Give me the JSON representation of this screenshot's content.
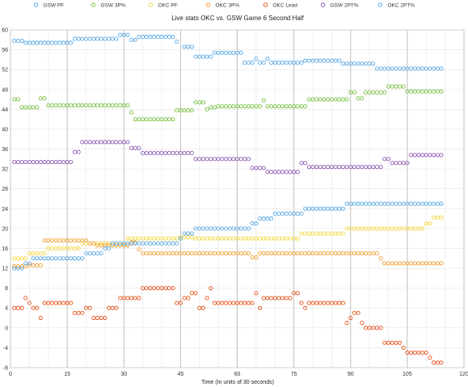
{
  "chart_data": {
    "type": "scatter",
    "title": "Live stats OKC vs. GSW Game 6 Second Half",
    "xlabel": "Time (In units of 30 seconds)",
    "ylabel": "",
    "xlim": [
      0,
      120
    ],
    "ylim": [
      -8,
      60
    ],
    "xticks": [
      0,
      15,
      30,
      45,
      60,
      75,
      90,
      105,
      120
    ],
    "yticks": [
      -8,
      -4,
      0,
      4,
      8,
      12,
      16,
      20,
      24,
      28,
      32,
      36,
      40,
      44,
      48,
      52,
      56,
      60
    ],
    "grid": "on",
    "legend_position": "top",
    "series": [
      {
        "name": "GSW PF",
        "color": "#5aa9e6",
        "segments": [
          [
            1,
            3,
            57.8
          ],
          [
            4,
            16,
            57.4
          ],
          [
            17,
            28,
            58.2
          ],
          [
            29,
            31,
            59.0
          ],
          [
            32,
            33,
            58.0
          ],
          [
            34,
            43,
            58.6
          ],
          [
            44,
            44,
            57.6
          ],
          [
            46,
            48,
            56.6
          ],
          [
            49,
            51,
            54.6
          ],
          [
            52,
            53,
            54.6
          ],
          [
            54,
            61,
            55.4
          ],
          [
            62,
            64,
            53.4
          ],
          [
            65,
            65,
            54.2
          ],
          [
            66,
            67,
            53.4
          ],
          [
            68,
            68,
            54.2
          ],
          [
            69,
            77,
            53.4
          ],
          [
            78,
            87,
            53.8
          ],
          [
            88,
            96,
            53.2
          ],
          [
            97,
            103,
            52.2
          ],
          [
            104,
            114,
            52.2
          ]
        ]
      },
      {
        "name": "GSW 3P%",
        "color": "#7ac143",
        "segments": [
          [
            1,
            2,
            46.0
          ],
          [
            3,
            7,
            44.4
          ],
          [
            8,
            9,
            46.2
          ],
          [
            10,
            31,
            44.8
          ],
          [
            32,
            32,
            43.4
          ],
          [
            33,
            43,
            42.0
          ],
          [
            44,
            48,
            43.8
          ],
          [
            49,
            51,
            45.4
          ],
          [
            52,
            52,
            44.0
          ],
          [
            53,
            54,
            44.4
          ],
          [
            55,
            66,
            44.6
          ],
          [
            67,
            67,
            45.8
          ],
          [
            68,
            78,
            44.6
          ],
          [
            79,
            89,
            46.0
          ],
          [
            90,
            91,
            47.4
          ],
          [
            92,
            93,
            46.2
          ],
          [
            94,
            99,
            47.4
          ],
          [
            100,
            104,
            48.6
          ],
          [
            105,
            114,
            47.6
          ]
        ]
      },
      {
        "name": "OKC PF",
        "color": "#f5d742",
        "segments": [
          [
            1,
            4,
            14.0
          ],
          [
            5,
            9,
            15.0
          ],
          [
            10,
            18,
            16.0
          ],
          [
            19,
            19,
            17.0
          ],
          [
            20,
            23,
            17.0
          ],
          [
            24,
            30,
            17.0
          ],
          [
            31,
            44,
            18.0
          ],
          [
            45,
            48,
            18.2
          ],
          [
            49,
            76,
            18.0
          ],
          [
            77,
            88,
            19.0
          ],
          [
            89,
            109,
            20.0
          ],
          [
            110,
            111,
            21.0
          ],
          [
            112,
            114,
            22.2
          ]
        ]
      },
      {
        "name": "OKC 3P%",
        "color": "#f0a030",
        "segments": [
          [
            1,
            4,
            12.4
          ],
          [
            5,
            8,
            12.6
          ],
          [
            9,
            20,
            17.6
          ],
          [
            21,
            22,
            17.0
          ],
          [
            23,
            31,
            16.6
          ],
          [
            32,
            33,
            17.2
          ],
          [
            34,
            34,
            15.8
          ],
          [
            35,
            63,
            15.0
          ],
          [
            64,
            65,
            14.2
          ],
          [
            66,
            97,
            15.0
          ],
          [
            98,
            98,
            14.0
          ],
          [
            99,
            114,
            13.0
          ]
        ]
      },
      {
        "name": "OKC Lead",
        "color": "#e8521c",
        "segments": [
          [
            1,
            3,
            4.0
          ],
          [
            4,
            4,
            6.0
          ],
          [
            5,
            5,
            5.0
          ],
          [
            6,
            7,
            4.0
          ],
          [
            8,
            8,
            2.0
          ],
          [
            9,
            16,
            5.0
          ],
          [
            17,
            19,
            3.0
          ],
          [
            20,
            21,
            4.0
          ],
          [
            22,
            25,
            2.0
          ],
          [
            26,
            28,
            4.0
          ],
          [
            29,
            34,
            6.0
          ],
          [
            35,
            43,
            8.0
          ],
          [
            44,
            45,
            5.0
          ],
          [
            46,
            47,
            6.0
          ],
          [
            48,
            49,
            7.0
          ],
          [
            50,
            51,
            4.0
          ],
          [
            52,
            52,
            6.0
          ],
          [
            53,
            53,
            8.0
          ],
          [
            54,
            64,
            5.0
          ],
          [
            65,
            65,
            7.0
          ],
          [
            66,
            66,
            4.0
          ],
          [
            67,
            67,
            6.0
          ],
          [
            68,
            74,
            6.0
          ],
          [
            75,
            76,
            7.0
          ],
          [
            77,
            77,
            5.0
          ],
          [
            78,
            78,
            4.0
          ],
          [
            79,
            88,
            5.0
          ],
          [
            89,
            89,
            1.0
          ],
          [
            90,
            90,
            2.0
          ],
          [
            91,
            92,
            3.0
          ],
          [
            93,
            93,
            1.0
          ],
          [
            94,
            98,
            0.0
          ],
          [
            99,
            103,
            -3.0
          ],
          [
            104,
            104,
            -4.0
          ],
          [
            105,
            110,
            -5.0
          ],
          [
            111,
            111,
            -6.0
          ],
          [
            112,
            114,
            -7.0
          ]
        ]
      },
      {
        "name": "GSW 2PT%",
        "color": "#8e5bb5",
        "segments": [
          [
            1,
            16,
            33.4
          ],
          [
            17,
            18,
            35.4
          ],
          [
            19,
            31,
            37.4
          ],
          [
            32,
            34,
            36.2
          ],
          [
            35,
            48,
            35.2
          ],
          [
            49,
            63,
            34.0
          ],
          [
            64,
            67,
            32.2
          ],
          [
            68,
            76,
            31.4
          ],
          [
            77,
            78,
            33.2
          ],
          [
            79,
            98,
            32.4
          ],
          [
            99,
            100,
            34.0
          ],
          [
            101,
            105,
            33.2
          ],
          [
            106,
            114,
            34.8
          ]
        ]
      },
      {
        "name": "OKC 2PT%",
        "color": "#5aa9e6",
        "segments": [
          [
            1,
            3,
            12.0
          ],
          [
            4,
            5,
            13.0
          ],
          [
            6,
            19,
            14.0
          ],
          [
            20,
            24,
            15.0
          ],
          [
            25,
            25,
            16.0
          ],
          [
            26,
            26,
            16.0
          ],
          [
            27,
            30,
            17.0
          ],
          [
            31,
            44,
            17.0
          ],
          [
            45,
            45,
            18.0
          ],
          [
            46,
            48,
            19.0
          ],
          [
            49,
            63,
            20.0
          ],
          [
            64,
            65,
            21.0
          ],
          [
            66,
            69,
            22.0
          ],
          [
            70,
            77,
            23.0
          ],
          [
            78,
            88,
            24.0
          ],
          [
            89,
            114,
            25.0
          ]
        ]
      }
    ]
  }
}
